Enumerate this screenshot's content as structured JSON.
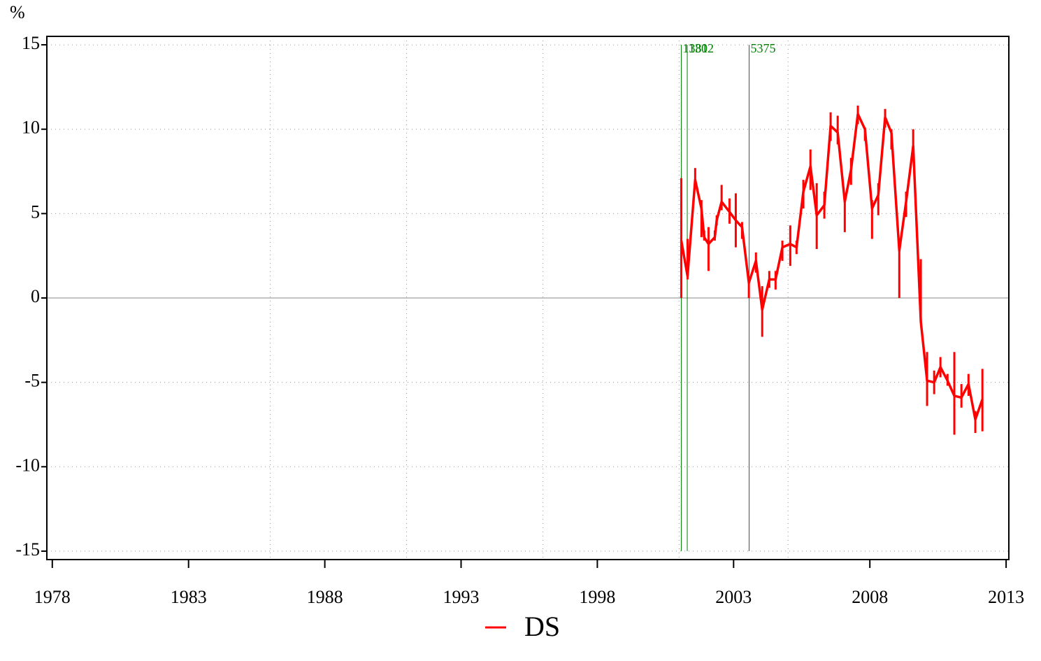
{
  "chart_data": {
    "type": "line",
    "y_unit": "%",
    "x": [
      2001.08,
      2001.31,
      2001.59,
      2001.82,
      2001.92,
      2002.08,
      2002.31,
      2002.38,
      2002.56,
      2002.85,
      2003.08,
      2003.31,
      2003.56,
      2003.82,
      2004.05,
      2004.31,
      2004.54,
      2004.79,
      2005.08,
      2005.31,
      2005.56,
      2005.82,
      2006.05,
      2006.33,
      2006.56,
      2006.82,
      2007.08,
      2007.31,
      2007.56,
      2007.82,
      2008.08,
      2008.31,
      2008.56,
      2008.79,
      2009.08,
      2009.33,
      2009.59,
      2009.87,
      2010.1,
      2010.36,
      2010.59,
      2010.85,
      2011.1,
      2011.36,
      2011.62,
      2011.87,
      2012.13
    ],
    "series": [
      {
        "name": "DS",
        "color": "#ff0000",
        "values": [
          3.4,
          1.3,
          7.0,
          5.3,
          3.6,
          3.2,
          3.6,
          4.6,
          5.7,
          5.1,
          4.6,
          4.2,
          0.9,
          2.2,
          -0.7,
          1.1,
          1.1,
          3.0,
          3.2,
          3.0,
          6.3,
          7.8,
          4.9,
          5.5,
          10.2,
          9.8,
          5.7,
          7.6,
          10.9,
          10.0,
          5.3,
          6.1,
          10.7,
          9.8,
          2.8,
          5.7,
          9.0,
          -1.4,
          -4.9,
          -5.0,
          -4.1,
          -4.9,
          -5.8,
          -5.9,
          -5.1,
          -7.2,
          -6.0
        ],
        "low": [
          0.0,
          1.1,
          6.5,
          3.6,
          3.4,
          1.6,
          3.4,
          4.3,
          5.2,
          4.4,
          3.0,
          3.5,
          0.0,
          1.5,
          -2.3,
          0.6,
          0.5,
          2.2,
          1.9,
          2.6,
          5.3,
          6.4,
          2.9,
          4.7,
          9.3,
          9.1,
          3.9,
          6.7,
          10.3,
          9.3,
          3.5,
          4.9,
          10.1,
          8.8,
          0.0,
          4.8,
          8.3,
          -1.4,
          -6.4,
          -5.7,
          -4.7,
          -5.2,
          -8.1,
          -6.5,
          -5.8,
          -8.0,
          -7.9
        ],
        "high": [
          7.1,
          3.5,
          7.7,
          5.8,
          4.0,
          4.2,
          4.0,
          4.9,
          6.7,
          5.9,
          6.2,
          4.5,
          1.2,
          2.7,
          0.7,
          1.6,
          1.6,
          3.4,
          4.3,
          3.4,
          7.0,
          8.8,
          6.8,
          6.3,
          11.0,
          10.8,
          6.2,
          8.3,
          11.4,
          10.1,
          5.8,
          6.8,
          11.2,
          10.0,
          3.3,
          6.3,
          10.0,
          2.3,
          -3.2,
          -4.3,
          -3.5,
          -4.5,
          -3.2,
          -5.1,
          -4.5,
          -6.7,
          -4.2
        ]
      }
    ],
    "xlim": [
      1977.8,
      2013.1
    ],
    "xticks": [
      1978,
      1983,
      1988,
      1993,
      1998,
      2003,
      2008,
      2013
    ],
    "ylim": [
      -15.5,
      15.5
    ],
    "yticks": [
      15,
      10,
      5,
      0,
      -5,
      -10,
      -15
    ],
    "xgrid": [
      1986,
      1991,
      1996,
      2001,
      2005
    ],
    "vlines": [
      {
        "x": 2001.08,
        "label": "1381"
      },
      {
        "x": 2001.3,
        "label": "1302"
      },
      {
        "x": 2003.57,
        "label": "5375"
      }
    ],
    "vline_color": "#008000",
    "grid": true
  }
}
